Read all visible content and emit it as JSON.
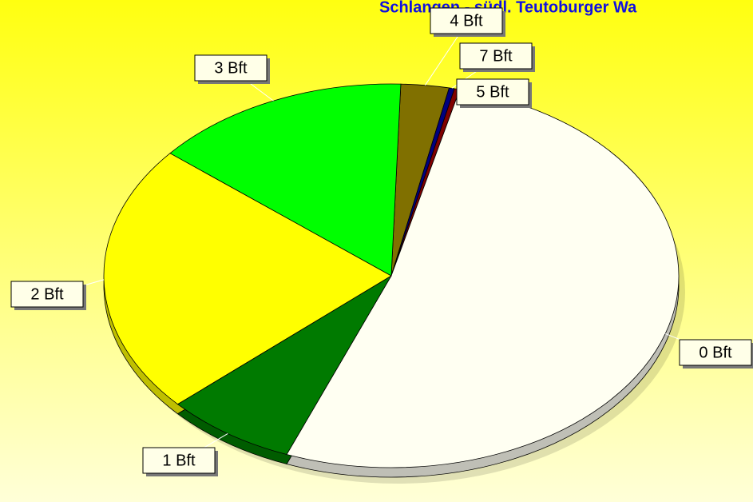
{
  "chart_data": {
    "type": "pie",
    "title": "Schlangen - südl. Teutoburger Wa",
    "categories": [
      "4 Bft",
      "7 Bft",
      "5 Bft",
      "0 Bft",
      "1 Bft",
      "2 Bft",
      "3 Bft"
    ],
    "values": [
      2.7,
      0.3,
      0.3,
      52.1,
      7.4,
      22.7,
      14.5
    ],
    "colors": [
      "#807000",
      "#000080",
      "#800000",
      "#fffff2",
      "#007a00",
      "#ffff00",
      "#00ff00"
    ]
  }
}
